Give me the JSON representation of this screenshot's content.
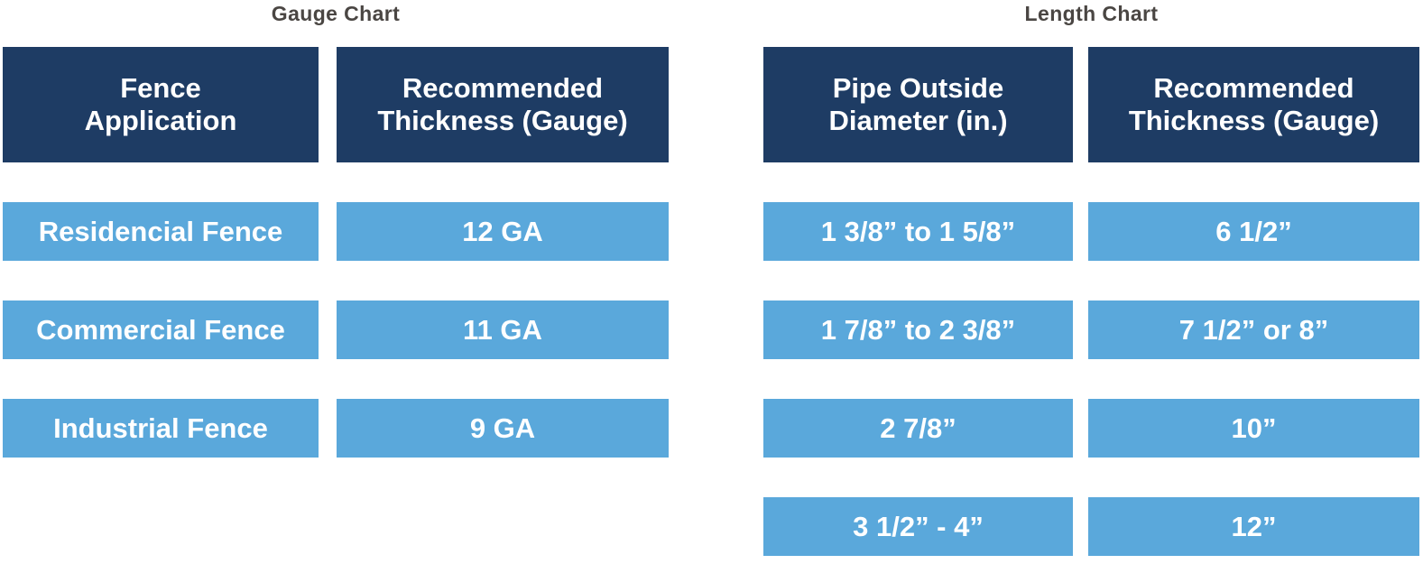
{
  "colors": {
    "header_bg": "#1e3c64",
    "row_bg": "#5aa8db",
    "title_text": "#4a4643",
    "cell_text": "#ffffff",
    "page_bg": "#ffffff"
  },
  "chart_data": [
    {
      "type": "table",
      "title": "Gauge Chart",
      "columns": [
        "Fence Application",
        "Recommended Thickness (Gauge)"
      ],
      "rows": [
        [
          "Residencial Fence",
          "12 GA"
        ],
        [
          "Commercial Fence",
          "11 GA"
        ],
        [
          "Industrial Fence",
          "9 GA"
        ]
      ]
    },
    {
      "type": "table",
      "title": "Length Chart",
      "columns": [
        "Pipe Outside Diameter (in.)",
        "Recommended Thickness (Gauge)"
      ],
      "rows": [
        [
          "1 3/8” to 1 5/8”",
          "6 1/2”"
        ],
        [
          "1 7/8” to 2 3/8”",
          "7 1/2” or 8”"
        ],
        [
          "2 7/8”",
          "10”"
        ],
        [
          "3 1/2” - 4”",
          "12”"
        ]
      ]
    }
  ],
  "display": {
    "gauge_headers": [
      "Fence\nApplication",
      "Recommended\nThickness (Gauge)"
    ],
    "length_headers": [
      "Pipe Outside\nDiameter (in.)",
      "Recommended\nThickness (Gauge)"
    ]
  }
}
